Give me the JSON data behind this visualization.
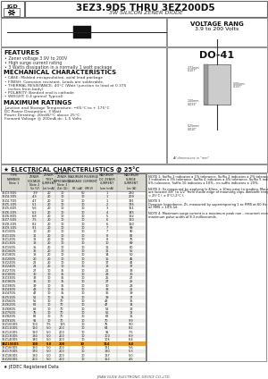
{
  "title_main": "3EZ3.9D5 THRU 3EZ200D5",
  "title_sub": "3W SILICON ZENER DIODE",
  "voltage_range_title": "VOLTAGE RANG",
  "voltage_range_value": "3.9 to 200 Volts",
  "package": "DO-41",
  "features_title": "FEATURES",
  "features": [
    "• Zener voltage 3.9V to 200V",
    "• High surge current rating",
    "• 3 Watts dissipation in a normally 1 watt package"
  ],
  "mech_title": "MECHANICAL CHARACTERISTICS",
  "mech": [
    "• CASE: Molded encapsulation, axial lead package",
    "• FINISH: Corrosion resistant. Leads are solderable.",
    "• THERMAL RESISTANCE: 40°C /Watt (junction to lead at 0.375",
    "   inches from body)",
    "• POLARITY: Banded end is cathode",
    "• WEIGHT: 0.4 grams( Typical)"
  ],
  "max_title": "MAXIMUM RATINGS",
  "max_ratings": [
    "Junction and Storage Temperature: −65°C to + 175°C",
    "DC Power Dissipation: 3 Watt",
    "Power Derating: 20mW/°C above 25°C",
    "Forward Voltage @ 200mA dc: 1.5 Volts"
  ],
  "elec_title": "★ ELECTRICAL CHARCTERLISTICS @ 25°C",
  "col_headers": [
    "TYPE\nNUMBER\nNote 1",
    "NOMINAL\nZENER\nVOLTAGE\nNote 2",
    "ZENER\nTEST\nCURRENT",
    "MAXIMUM\nZENER\nIMPEDANCE\nNote 3",
    "MAXIMUM REVERSE\nLEAKAGE CURRENT",
    "MAXIMUM\nDC ZENER\nCURRENT",
    "MAXIMUM\nSURGE\nCURRENT"
  ],
  "col_subheaders": [
    "",
    "Vz (V)",
    "Izt (mA)",
    "Zzt (Ω)",
    "IR (uA) @ VR(V)",
    "Izm (mA)",
    "Izs (A)"
  ],
  "table_rows": [
    [
      "3EZ3.9D5",
      "3.9",
      "20",
      "10",
      "50",
      "1",
      "230",
      ""
    ],
    [
      "3EZ4.3D5",
      "4.3",
      "20",
      "10",
      "10",
      "1",
      "209",
      ""
    ],
    [
      "3EZ4.7D5",
      "4.7",
      "20",
      "10",
      "10",
      "1",
      "191",
      ""
    ],
    [
      "3EZ5.1D5",
      "5.1",
      "20",
      "10",
      "10",
      "2",
      "176",
      ""
    ],
    [
      "3EZ5.6D5",
      "5.6",
      "20",
      "10",
      "10",
      "3",
      "161",
      ""
    ],
    [
      "3EZ6.2D5",
      "6.2",
      "20",
      "10",
      "10",
      "4",
      "145",
      ""
    ],
    [
      "3EZ6.8D5",
      "6.8",
      "20",
      "10",
      "10",
      "5",
      "132",
      ""
    ],
    [
      "3EZ7.5D5",
      "7.5",
      "20",
      "10",
      "10",
      "6",
      "120",
      ""
    ],
    [
      "3EZ8.2D5",
      "8.2",
      "20",
      "10",
      "10",
      "6",
      "110",
      ""
    ],
    [
      "3EZ9.1D5",
      "9.1",
      "20",
      "10",
      "10",
      "7",
      "99",
      ""
    ],
    [
      "3EZ10D5",
      "10",
      "20",
      "10",
      "10",
      "7",
      "90",
      ""
    ],
    [
      "3EZ11D5",
      "11",
      "20",
      "10",
      "10",
      "8",
      "82",
      ""
    ],
    [
      "3EZ12D5",
      "12",
      "20",
      "10",
      "10",
      "8",
      "75",
      ""
    ],
    [
      "3EZ13D5",
      "13",
      "20",
      "10",
      "10",
      "10",
      "69",
      ""
    ],
    [
      "3EZ15D5",
      "15",
      "20",
      "10",
      "10",
      "11",
      "60",
      ""
    ],
    [
      "3EZ16D5",
      "16",
      "20",
      "10",
      "10",
      "12",
      "56",
      ""
    ],
    [
      "3EZ18D5",
      "18",
      "20",
      "10",
      "10",
      "14",
      "50",
      ""
    ],
    [
      "3EZ20D5",
      "20",
      "20",
      "10",
      "10",
      "15",
      "45",
      ""
    ],
    [
      "3EZ22D5",
      "22",
      "20",
      "10",
      "10",
      "17",
      "41",
      ""
    ],
    [
      "3EZ24D5",
      "24",
      "20",
      "10",
      "10",
      "18",
      "37",
      ""
    ],
    [
      "3EZ27D5",
      "27",
      "10",
      "35",
      "10",
      "21",
      "33",
      ""
    ],
    [
      "3EZ30D5",
      "30",
      "10",
      "35",
      "10",
      "23",
      "30",
      ""
    ],
    [
      "3EZ33D5",
      "33",
      "10",
      "35",
      "10",
      "25",
      "27",
      ""
    ],
    [
      "3EZ36D5",
      "36",
      "10",
      "35",
      "10",
      "27",
      "25",
      ""
    ],
    [
      "3EZ39D5",
      "39",
      "10",
      "35",
      "10",
      "30",
      "23",
      ""
    ],
    [
      "3EZ43D5",
      "43",
      "10",
      "35",
      "10",
      "33",
      "21",
      ""
    ],
    [
      "3EZ47D5",
      "47",
      "10",
      "35",
      "10",
      "36",
      "19",
      ""
    ],
    [
      "3EZ51D5",
      "51",
      "10",
      "35",
      "10",
      "39",
      "17",
      ""
    ],
    [
      "3EZ56D5",
      "56",
      "10",
      "70",
      "10",
      "43",
      "16",
      ""
    ],
    [
      "3EZ62D5",
      "62",
      "10",
      "70",
      "10",
      "47",
      "14",
      ""
    ],
    [
      "3EZ68D5",
      "68",
      "10",
      "70",
      "10",
      "52",
      "13",
      ""
    ],
    [
      "3EZ75D5",
      "75",
      "10",
      "70",
      "10",
      "56",
      "12",
      ""
    ],
    [
      "3EZ82D5",
      "82",
      "10",
      "70",
      "10",
      "62",
      "11",
      ""
    ],
    [
      "3EZ91D5",
      "91",
      "10",
      "70",
      "10",
      "70",
      "9.9",
      ""
    ],
    [
      "3EZ100D5",
      "100",
      "7.5",
      "125",
      "10",
      "75",
      "9.0",
      ""
    ],
    [
      "3EZ110D5",
      "110",
      "5.0",
      "200",
      "10",
      "84",
      "8.2",
      ""
    ],
    [
      "3EZ120D5",
      "120",
      "5.0",
      "200",
      "10",
      "91",
      "7.5",
      ""
    ],
    [
      "3EZ130D5",
      "130",
      "5.0",
      "200",
      "10",
      "100",
      "6.9",
      ""
    ],
    [
      "3EZ140D5",
      "140",
      "5.0",
      "200",
      "10",
      "106",
      "6.4",
      ""
    ],
    [
      "3EZ150D5",
      "150",
      "5.0",
      "200",
      "10",
      "114",
      "6.0",
      ""
    ],
    [
      "3EZ160D5",
      "160",
      "5.0",
      "200",
      "10",
      "121",
      "5.6",
      ""
    ],
    [
      "3EZ170D5",
      "170",
      "5.0",
      "200",
      "10",
      "130",
      "5.3",
      ""
    ],
    [
      "3EZ180D5",
      "180",
      "5.0",
      "200",
      "10",
      "137",
      "5.0",
      ""
    ],
    [
      "3EZ200D5",
      "200",
      "5.0",
      "200",
      "10",
      "152",
      "4.5",
      ""
    ]
  ],
  "highlight_type": "3EZ150D5",
  "highlight_color": "#e8a030",
  "notes": [
    "NOTE 1: Suffix 1 indicates a 1% tolerance. Suffix 2 indicates a 2% tolerance. Suffix 3 indicates a 3% tolerance. Suffix 4 indicates a 4% tolerance. Suffix 5 indicates a 5% tolerance. Suffix 10 indicates a 10% , no suffix indicates ± 20%.",
    "NOTE 2: Vz measured by applying Iz 40ms, a 10ms prior to reading. Mounting contacts are located 3/8\" to 1/2\" from inside edge of mounting clips. Ambient temperature, Ta = 25°C ( ± 0°C/-2°C ).",
    "NOTE 3\nDynamic Impedance, Zt, measured by superimposing 1 ac RMS at 60 Hz on Izt, where I ac RMS = 10% Izt.",
    "NOTE 4: Maximum surge current is a maximum peak non – recurrent reverse surge with a maximum pulse width of 8.3 milliseconds."
  ],
  "jedec_note": "★ JEDEC Registered Data",
  "footer": "JINAN GUDE ELECTRONIC DEVICE CO.,LTD.",
  "bg_color": "#f0ede8",
  "white": "#ffffff",
  "border_color": "#666666",
  "text_dark": "#111111",
  "text_mid": "#333333",
  "text_light": "#555555"
}
